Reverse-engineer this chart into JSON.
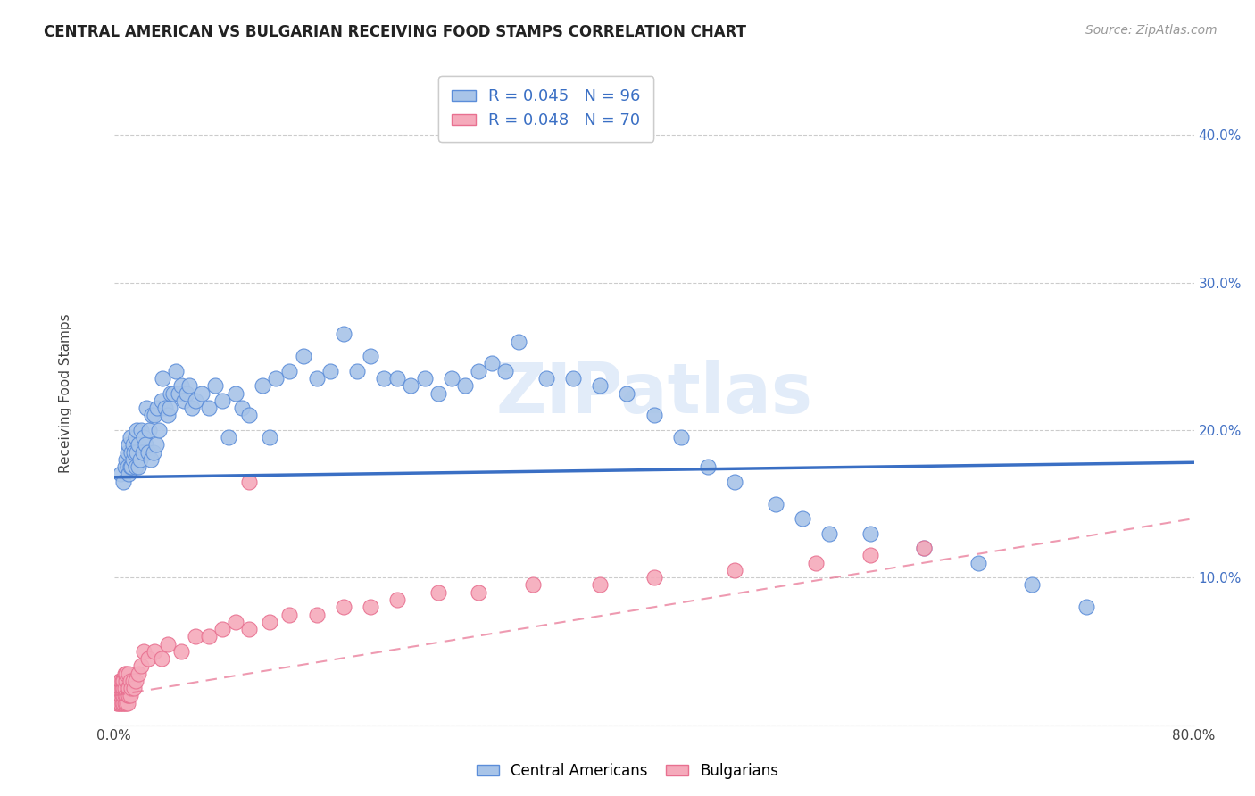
{
  "title": "CENTRAL AMERICAN VS BULGARIAN RECEIVING FOOD STAMPS CORRELATION CHART",
  "source": "Source: ZipAtlas.com",
  "ylabel": "Receiving Food Stamps",
  "xlim": [
    0,
    0.8
  ],
  "ylim": [
    0,
    0.45
  ],
  "xticks": [
    0.0,
    0.1,
    0.2,
    0.3,
    0.4,
    0.5,
    0.6,
    0.7,
    0.8
  ],
  "xticklabels": [
    "0.0%",
    "",
    "",
    "",
    "",
    "",
    "",
    "",
    "80.0%"
  ],
  "yticks": [
    0.0,
    0.1,
    0.2,
    0.3,
    0.4
  ],
  "yticklabels": [
    "",
    "10.0%",
    "20.0%",
    "30.0%",
    "40.0%"
  ],
  "blue_color": "#A8C4E8",
  "pink_color": "#F5AABB",
  "blue_edge_color": "#5B8DD9",
  "pink_edge_color": "#E87090",
  "blue_line_color": "#3A6FC4",
  "pink_line_color": "#E87090",
  "legend_R_blue": "0.045",
  "legend_N_blue": "96",
  "legend_R_pink": "0.048",
  "legend_N_pink": "70",
  "watermark": "ZIPatlas",
  "blue_scatter_x": [
    0.005,
    0.007,
    0.008,
    0.009,
    0.01,
    0.01,
    0.011,
    0.011,
    0.012,
    0.012,
    0.013,
    0.013,
    0.014,
    0.014,
    0.015,
    0.016,
    0.016,
    0.017,
    0.017,
    0.018,
    0.018,
    0.019,
    0.02,
    0.021,
    0.022,
    0.023,
    0.024,
    0.025,
    0.026,
    0.027,
    0.028,
    0.029,
    0.03,
    0.031,
    0.032,
    0.033,
    0.035,
    0.036,
    0.038,
    0.04,
    0.041,
    0.042,
    0.044,
    0.046,
    0.048,
    0.05,
    0.052,
    0.054,
    0.056,
    0.058,
    0.06,
    0.065,
    0.07,
    0.075,
    0.08,
    0.085,
    0.09,
    0.095,
    0.1,
    0.11,
    0.115,
    0.12,
    0.13,
    0.14,
    0.15,
    0.16,
    0.17,
    0.18,
    0.19,
    0.2,
    0.21,
    0.22,
    0.23,
    0.24,
    0.25,
    0.26,
    0.27,
    0.28,
    0.29,
    0.3,
    0.32,
    0.34,
    0.36,
    0.38,
    0.4,
    0.42,
    0.44,
    0.46,
    0.49,
    0.51,
    0.53,
    0.56,
    0.6,
    0.64,
    0.68,
    0.72
  ],
  "blue_scatter_y": [
    0.17,
    0.165,
    0.175,
    0.18,
    0.175,
    0.185,
    0.17,
    0.19,
    0.195,
    0.175,
    0.185,
    0.175,
    0.19,
    0.18,
    0.185,
    0.175,
    0.195,
    0.185,
    0.2,
    0.175,
    0.19,
    0.18,
    0.2,
    0.185,
    0.195,
    0.19,
    0.215,
    0.185,
    0.2,
    0.18,
    0.21,
    0.185,
    0.21,
    0.19,
    0.215,
    0.2,
    0.22,
    0.235,
    0.215,
    0.21,
    0.215,
    0.225,
    0.225,
    0.24,
    0.225,
    0.23,
    0.22,
    0.225,
    0.23,
    0.215,
    0.22,
    0.225,
    0.215,
    0.23,
    0.22,
    0.195,
    0.225,
    0.215,
    0.21,
    0.23,
    0.195,
    0.235,
    0.24,
    0.25,
    0.235,
    0.24,
    0.265,
    0.24,
    0.25,
    0.235,
    0.235,
    0.23,
    0.235,
    0.225,
    0.235,
    0.23,
    0.24,
    0.245,
    0.24,
    0.26,
    0.235,
    0.235,
    0.23,
    0.225,
    0.21,
    0.195,
    0.175,
    0.165,
    0.15,
    0.14,
    0.13,
    0.13,
    0.12,
    0.11,
    0.095,
    0.08
  ],
  "pink_scatter_x": [
    0.001,
    0.002,
    0.002,
    0.003,
    0.003,
    0.003,
    0.004,
    0.004,
    0.004,
    0.005,
    0.005,
    0.005,
    0.005,
    0.006,
    0.006,
    0.006,
    0.006,
    0.007,
    0.007,
    0.007,
    0.007,
    0.008,
    0.008,
    0.008,
    0.008,
    0.009,
    0.009,
    0.009,
    0.009,
    0.01,
    0.01,
    0.01,
    0.011,
    0.011,
    0.011,
    0.012,
    0.012,
    0.013,
    0.014,
    0.015,
    0.016,
    0.018,
    0.02,
    0.022,
    0.025,
    0.03,
    0.035,
    0.04,
    0.05,
    0.06,
    0.07,
    0.08,
    0.09,
    0.1,
    0.115,
    0.13,
    0.15,
    0.17,
    0.19,
    0.21,
    0.24,
    0.27,
    0.31,
    0.36,
    0.4,
    0.46,
    0.52,
    0.56,
    0.6,
    0.1
  ],
  "pink_scatter_y": [
    0.02,
    0.015,
    0.025,
    0.015,
    0.02,
    0.025,
    0.015,
    0.02,
    0.03,
    0.015,
    0.02,
    0.025,
    0.03,
    0.015,
    0.02,
    0.025,
    0.03,
    0.015,
    0.02,
    0.025,
    0.03,
    0.015,
    0.02,
    0.025,
    0.035,
    0.015,
    0.02,
    0.03,
    0.035,
    0.015,
    0.02,
    0.025,
    0.02,
    0.025,
    0.035,
    0.02,
    0.03,
    0.025,
    0.03,
    0.025,
    0.03,
    0.035,
    0.04,
    0.05,
    0.045,
    0.05,
    0.045,
    0.055,
    0.05,
    0.06,
    0.06,
    0.065,
    0.07,
    0.065,
    0.07,
    0.075,
    0.075,
    0.08,
    0.08,
    0.085,
    0.09,
    0.09,
    0.095,
    0.095,
    0.1,
    0.105,
    0.11,
    0.115,
    0.12,
    0.165
  ],
  "blue_trend_x": [
    0.0,
    0.8
  ],
  "blue_trend_y": [
    0.168,
    0.178
  ],
  "pink_trend_x": [
    0.0,
    0.8
  ],
  "pink_trend_y": [
    0.02,
    0.14
  ]
}
